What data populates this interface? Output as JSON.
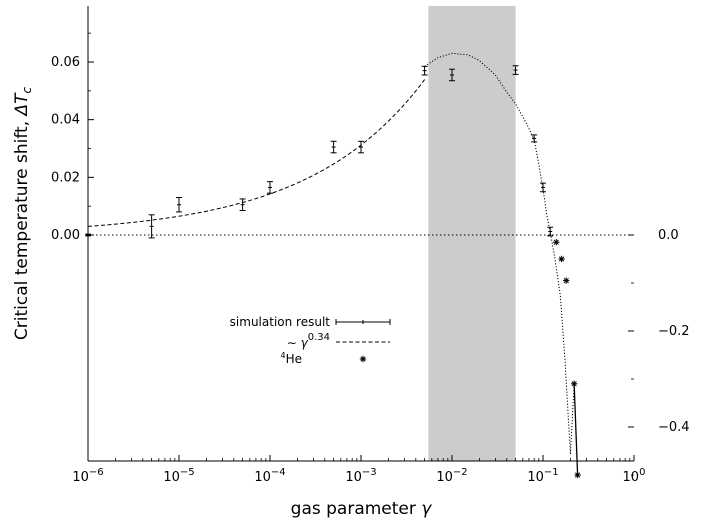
{
  "chart_data": {
    "type": "scatter",
    "xscale": "log",
    "xlim": [
      1e-06,
      1
    ],
    "ylim_left": [
      -0.0,
      0.08
    ],
    "ylim_right": [
      -0.52,
      0.08
    ],
    "xlabel_prefix": "gas parameter ",
    "xlabel_symbol": "γ",
    "ylabel_prefix": "Critical temperature shift, ",
    "ylabel_symbol": "ΔT",
    "ylabel_sub": "c",
    "x_ticks": [
      {
        "value": 1e-06,
        "base": "10",
        "exp": "−6"
      },
      {
        "value": 1e-05,
        "base": "10",
        "exp": "−5"
      },
      {
        "value": 0.0001,
        "base": "10",
        "exp": "−4"
      },
      {
        "value": 0.001,
        "base": "10",
        "exp": "−3"
      },
      {
        "value": 0.01,
        "base": "10",
        "exp": "−2"
      },
      {
        "value": 0.1,
        "base": "10",
        "exp": "−1"
      },
      {
        "value": 1,
        "base": "10",
        "exp": "0"
      }
    ],
    "left_ticks": [
      {
        "value": 0.0,
        "label": "0.00"
      },
      {
        "value": 0.02,
        "label": "0.02"
      },
      {
        "value": 0.04,
        "label": "0.04"
      },
      {
        "value": 0.06,
        "label": "0.06"
      }
    ],
    "right_ticks": [
      {
        "value": 0.0,
        "label": "0.0"
      },
      {
        "value": -0.2,
        "label": "−0.2"
      },
      {
        "value": -0.4,
        "label": "−0.4"
      }
    ],
    "shaded_band": {
      "x": [
        0.0055,
        0.05
      ],
      "color": "#cccccc"
    },
    "zero_line": 0.0,
    "series": [
      {
        "name": "simulation result",
        "axis": "left",
        "marker": "errorbar",
        "points": [
          {
            "x": 1e-06,
            "y": 0.0,
            "err": 0.0003
          },
          {
            "x": 5e-06,
            "y": 0.003,
            "err": 0.004
          },
          {
            "x": 1e-05,
            "y": 0.0105,
            "err": 0.0025
          },
          {
            "x": 5e-05,
            "y": 0.0105,
            "err": 0.002
          },
          {
            "x": 0.0001,
            "y": 0.0165,
            "err": 0.002
          },
          {
            "x": 0.0005,
            "y": 0.0305,
            "err": 0.002
          },
          {
            "x": 0.001,
            "y": 0.0305,
            "err": 0.002
          },
          {
            "x": 0.005,
            "y": 0.057,
            "err": 0.0015
          },
          {
            "x": 0.01,
            "y": 0.0555,
            "err": 0.002
          },
          {
            "x": 0.05,
            "y": 0.0572,
            "err": 0.0015
          },
          {
            "x": 0.08,
            "y": 0.0335,
            "err": 0.0012
          },
          {
            "x": 0.1,
            "y": 0.0165,
            "err": 0.0015
          },
          {
            "x": 0.12,
            "y": 0.0012,
            "err": 0.0015
          }
        ]
      },
      {
        "name": "∼ γ",
        "name_exp": "0.34",
        "axis": "left",
        "marker": "dashed-line",
        "fit": {
          "coef": 0.3265,
          "exponent": 0.34,
          "x_range": [
            1e-06,
            0.005
          ]
        }
      },
      {
        "name": "He",
        "name_pre_sup": "4",
        "axis": "right",
        "marker": "asterisk",
        "points": [
          {
            "x": 0.14,
            "y": -0.015
          },
          {
            "x": 0.16,
            "y": -0.05
          },
          {
            "x": 0.18,
            "y": -0.095
          },
          {
            "x": 0.22,
            "y": -0.31
          },
          {
            "x": 0.24,
            "y": -0.5
          }
        ]
      }
    ],
    "dotted_curve": [
      {
        "x": 0.005,
        "y": 0.0585
      },
      {
        "x": 0.007,
        "y": 0.0615
      },
      {
        "x": 0.01,
        "y": 0.063
      },
      {
        "x": 0.015,
        "y": 0.0625
      },
      {
        "x": 0.02,
        "y": 0.0605
      },
      {
        "x": 0.03,
        "y": 0.0555
      },
      {
        "x": 0.04,
        "y": 0.0495
      },
      {
        "x": 0.05,
        "y": 0.0455
      },
      {
        "x": 0.06,
        "y": 0.041
      },
      {
        "x": 0.07,
        "y": 0.037
      },
      {
        "x": 0.08,
        "y": 0.033
      },
      {
        "x": 0.09,
        "y": 0.0245
      },
      {
        "x": 0.1,
        "y": 0.016
      },
      {
        "x": 0.11,
        "y": 0.007
      },
      {
        "x": 0.12,
        "y": 0.001
      },
      {
        "x": 0.135,
        "y": -0.008
      },
      {
        "x": 0.155,
        "y": -0.021
      },
      {
        "x": 0.175,
        "y": -0.044
      },
      {
        "x": 0.2,
        "y": -0.076
      }
    ],
    "he_line_segment": [
      {
        "x": 0.22,
        "y": -0.31
      },
      {
        "x": 0.24,
        "y": -0.5
      }
    ],
    "legend": {
      "placement": "lower-center"
    }
  }
}
